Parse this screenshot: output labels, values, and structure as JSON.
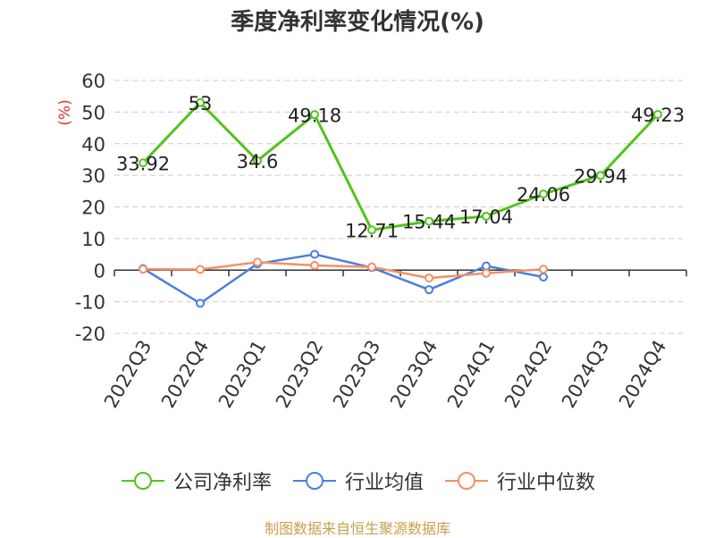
{
  "chart_data": {
    "type": "line",
    "title": "季度净利率变化情况(%)",
    "ylabel": "(%)",
    "ylim": [
      -20,
      60
    ],
    "yticks": [
      60,
      50,
      40,
      30,
      20,
      10,
      0,
      -10,
      -20
    ],
    "categories": [
      "2022Q3",
      "2022Q4",
      "2023Q1",
      "2023Q2",
      "2023Q3",
      "2023Q4",
      "2024Q1",
      "2024Q2",
      "2024Q3",
      "2024Q4"
    ],
    "series": [
      {
        "name": "公司净利率",
        "color": "#52c41a",
        "values": [
          33.92,
          53,
          34.6,
          49.18,
          12.71,
          15.44,
          17.04,
          24.06,
          29.94,
          49.23
        ],
        "labels": [
          "33.92",
          "53",
          "34.6",
          "49.18",
          "12.71",
          "15.44",
          "17.04",
          "24.06",
          "29.94",
          "49.23"
        ]
      },
      {
        "name": "行业均值",
        "color": "#4a7fe0",
        "values": [
          0.5,
          -10.5,
          2.0,
          5.0,
          0.8,
          -6.2,
          1.3,
          -2.2,
          null,
          null
        ]
      },
      {
        "name": "行业中位数",
        "color": "#f59064",
        "values": [
          0.3,
          0.2,
          2.5,
          1.5,
          1.0,
          -2.5,
          -1.0,
          0.3,
          null,
          null
        ]
      }
    ],
    "grid": true,
    "legend": "bottom"
  },
  "footer": {
    "source": "制图数据来自恒生聚源数据库"
  }
}
